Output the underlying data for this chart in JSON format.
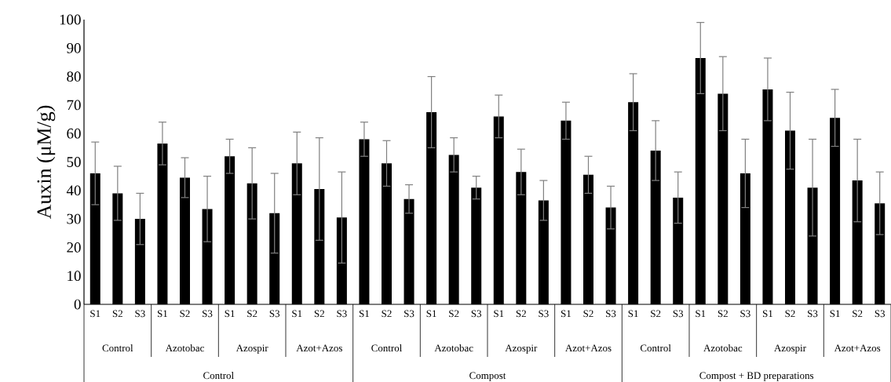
{
  "chart_data": {
    "type": "bar",
    "ylabel": "Auxin (μM/g)",
    "categories": [
      "S1",
      "S2",
      "S3",
      "S1",
      "S2",
      "S3",
      "S1",
      "S2",
      "S3",
      "S1",
      "S2",
      "S3",
      "S1",
      "S2",
      "S3",
      "S1",
      "S2",
      "S3",
      "S1",
      "S2",
      "S3",
      "S1",
      "S2",
      "S3",
      "S1",
      "S2",
      "S3",
      "S1",
      "S2",
      "S3",
      "S1",
      "S2",
      "S3",
      "S1",
      "S2",
      "S3"
    ],
    "values": [
      46,
      39,
      30,
      56.5,
      44.5,
      33.5,
      52,
      42.5,
      32,
      49.5,
      40.5,
      30.5,
      58,
      49.5,
      37,
      67.5,
      52.5,
      41,
      66,
      46.5,
      36.5,
      64.5,
      45.5,
      34,
      71,
      54,
      37.5,
      86.5,
      74,
      46,
      75.5,
      61,
      41,
      65.5,
      43.5,
      35.5
    ],
    "errors": [
      11,
      9.5,
      9,
      7.5,
      7,
      11.5,
      6,
      12.5,
      14,
      11,
      18,
      16,
      6,
      8,
      5,
      12.5,
      6,
      4,
      7.5,
      8,
      7,
      6.5,
      6.5,
      7.5,
      10,
      10.5,
      9,
      12.5,
      13,
      12,
      11,
      13.5,
      17,
      10,
      14.5,
      11
    ],
    "color": "#000000",
    "ylim": [
      0,
      100
    ],
    "yticks": [
      0,
      10,
      20,
      30,
      40,
      50,
      60,
      70,
      80,
      90,
      100
    ],
    "annotations": [
      "Control",
      "Azotobac",
      "Azospir",
      "Azot+Azos",
      "Control",
      "Azotobac",
      "Azospir",
      "Azot+Azos",
      "Control",
      "Azotobac",
      "Azospir",
      "Azot+Azos",
      "Control",
      "Compost",
      "Compost + BD preparations"
    ]
  }
}
